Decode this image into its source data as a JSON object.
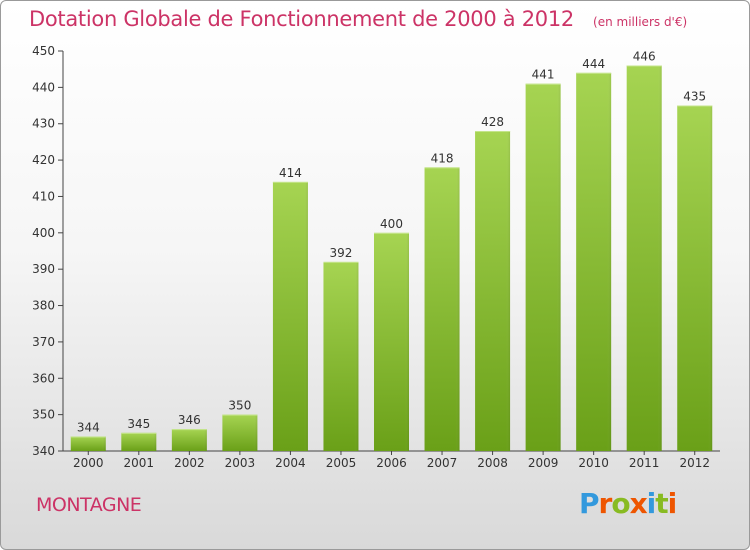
{
  "header": {
    "title": "Dotation Globale de Fonctionnement de 2000 à 2012",
    "unit": "(en milliers d'€)"
  },
  "footer": {
    "commune": "MONTAGNE",
    "logo_text": "Proxiti",
    "logo_colors": [
      "#3399dd",
      "#ee5500",
      "#88bb22",
      "#ee5500",
      "#3399dd",
      "#88bb22",
      "#ee5500"
    ]
  },
  "colors": {
    "bar_light": "#a6d452",
    "bar_dark": "#6aa018",
    "title": "#cc3366",
    "axis": "#444444"
  },
  "chart_data": {
    "type": "bar",
    "title": "Dotation Globale de Fonctionnement de 2000 à 2012",
    "subtitle": "(en milliers d'€)",
    "xlabel": "",
    "ylabel": "",
    "categories": [
      "2000",
      "2001",
      "2002",
      "2003",
      "2004",
      "2005",
      "2006",
      "2007",
      "2008",
      "2009",
      "2010",
      "2011",
      "2012"
    ],
    "values": [
      344,
      345,
      346,
      350,
      414,
      392,
      400,
      418,
      428,
      441,
      444,
      446,
      435
    ],
    "ylim": [
      340,
      450
    ],
    "yticks": [
      340,
      350,
      360,
      370,
      380,
      390,
      400,
      410,
      420,
      430,
      440,
      450
    ],
    "grid": false,
    "legend": "none"
  }
}
